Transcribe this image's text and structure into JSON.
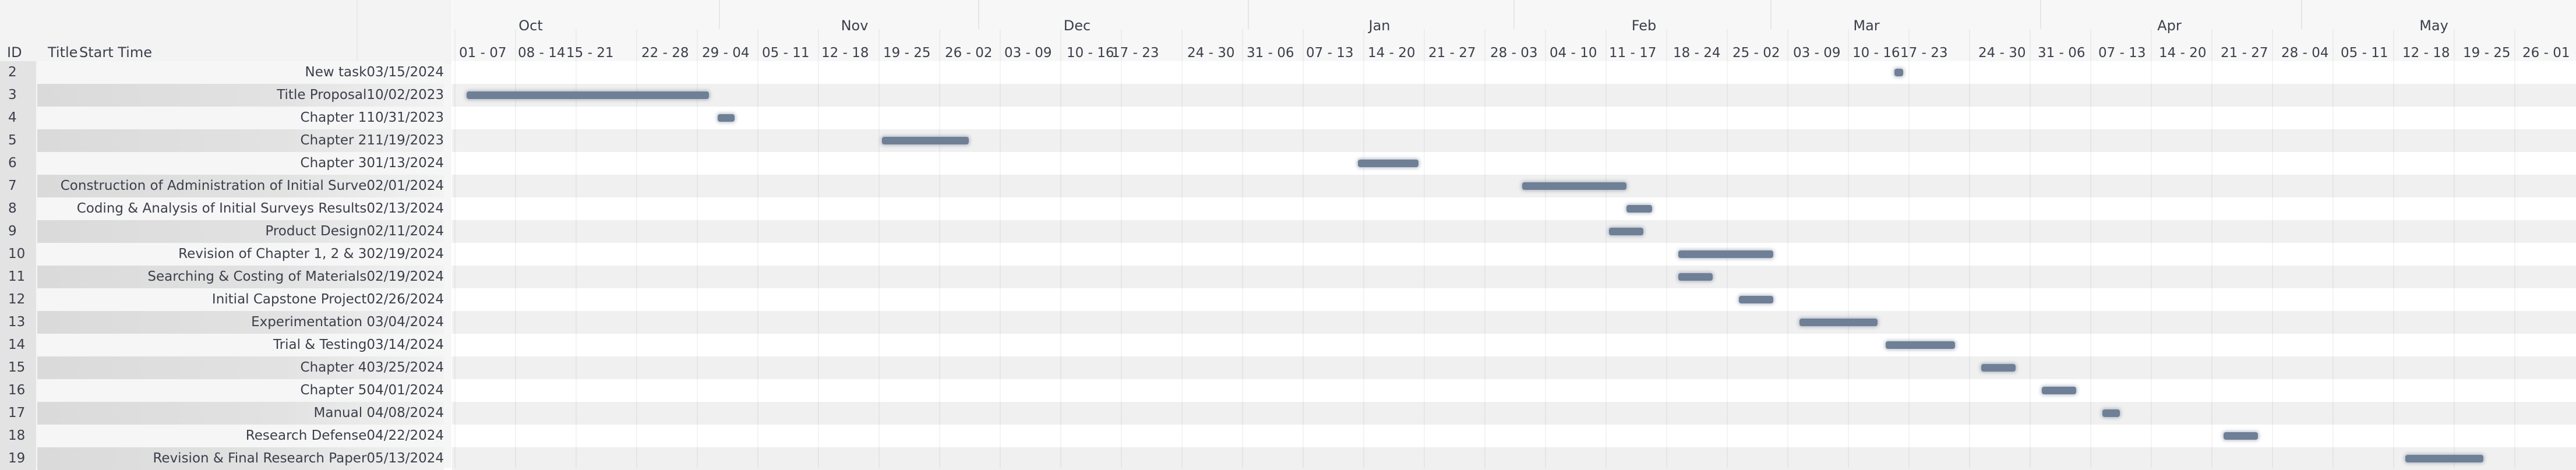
{
  "header": {
    "id_label": "ID",
    "title_label": "Title",
    "start_label": "Start Time"
  },
  "months": [
    "Oct",
    "Nov",
    "Dec",
    "Jan",
    "Feb",
    "Mar",
    "Apr",
    "May"
  ],
  "weeks": [
    "01 - 07",
    "08 - 14",
    "15 - 21",
    "22 - 28",
    "29 - 04",
    "05 - 11",
    "12 - 18",
    "19 - 25",
    "26 - 02",
    "03 - 09",
    "10 - 16",
    "17 - 23",
    "24 - 30",
    "31 - 06",
    "07 - 13",
    "14 - 20",
    "21 - 27",
    "28 - 03",
    "04 - 10",
    "11 - 17",
    "18 - 24",
    "25 - 02",
    "03 - 09",
    "10 - 16",
    "17 - 23",
    "24 - 30",
    "31 - 06",
    "07 - 13",
    "14 - 20",
    "21 - 27",
    "28 - 04",
    "05 - 11",
    "12 - 18",
    "19 - 25",
    "26 - 01"
  ],
  "tasks": [
    {
      "id": "2",
      "name": "New task",
      "start": "03/15/2024",
      "start_date": "2024-03-15",
      "end_date": "2024-03-16"
    },
    {
      "id": "3",
      "name": "Title Proposal",
      "start": "10/02/2023",
      "start_date": "2023-10-02",
      "end_date": "2023-10-30"
    },
    {
      "id": "4",
      "name": "Chapter 1",
      "start": "10/31/2023",
      "start_date": "2023-10-31",
      "end_date": "2023-11-02"
    },
    {
      "id": "5",
      "name": "Chapter 2",
      "start": "11/19/2023",
      "start_date": "2023-11-19",
      "end_date": "2023-11-29"
    },
    {
      "id": "6",
      "name": "Chapter 3",
      "start": "01/13/2024",
      "start_date": "2024-01-13",
      "end_date": "2024-01-20"
    },
    {
      "id": "7",
      "name": "Construction of Administration of Initial Surve",
      "start": "02/01/2024",
      "start_date": "2024-02-01",
      "end_date": "2024-02-13"
    },
    {
      "id": "8",
      "name": "Coding & Analysis of Initial Surveys Results",
      "start": "02/13/2024",
      "start_date": "2024-02-13",
      "end_date": "2024-02-16"
    },
    {
      "id": "9",
      "name": "Product Design",
      "start": "02/11/2024",
      "start_date": "2024-02-11",
      "end_date": "2024-02-15"
    },
    {
      "id": "10",
      "name": "Revision of Chapter 1, 2 & 3",
      "start": "02/19/2024",
      "start_date": "2024-02-19",
      "end_date": "2024-03-01"
    },
    {
      "id": "11",
      "name": "Searching & Costing of Materials",
      "start": "02/19/2024",
      "start_date": "2024-02-19",
      "end_date": "2024-02-23"
    },
    {
      "id": "12",
      "name": "Initial Capstone Project",
      "start": "02/26/2024",
      "start_date": "2024-02-26",
      "end_date": "2024-03-01"
    },
    {
      "id": "13",
      "name": "Experimentation ",
      "start": "03/04/2024",
      "start_date": "2024-03-04",
      "end_date": "2024-03-13"
    },
    {
      "id": "14",
      "name": "Trial & Testing",
      "start": "03/14/2024",
      "start_date": "2024-03-14",
      "end_date": "2024-03-22"
    },
    {
      "id": "15",
      "name": "Chapter 4",
      "start": "03/25/2024",
      "start_date": "2024-03-25",
      "end_date": "2024-03-29"
    },
    {
      "id": "16",
      "name": "Chapter 5",
      "start": "04/01/2024",
      "start_date": "2024-04-01",
      "end_date": "2024-04-05"
    },
    {
      "id": "17",
      "name": "Manual ",
      "start": "04/08/2024",
      "start_date": "2024-04-08",
      "end_date": "2024-04-10"
    },
    {
      "id": "18",
      "name": "Research Defense",
      "start": "04/22/2024",
      "start_date": "2024-04-22",
      "end_date": "2024-04-26"
    },
    {
      "id": "19",
      "name": "Revision & Final Research Paper",
      "start": "05/13/2024",
      "start_date": "2024-05-13",
      "end_date": "2024-05-22"
    }
  ],
  "colors": {
    "bar": "#6f7f96",
    "alt_row": "#f0f0f0",
    "header_bg": "#f7f7f7"
  }
}
